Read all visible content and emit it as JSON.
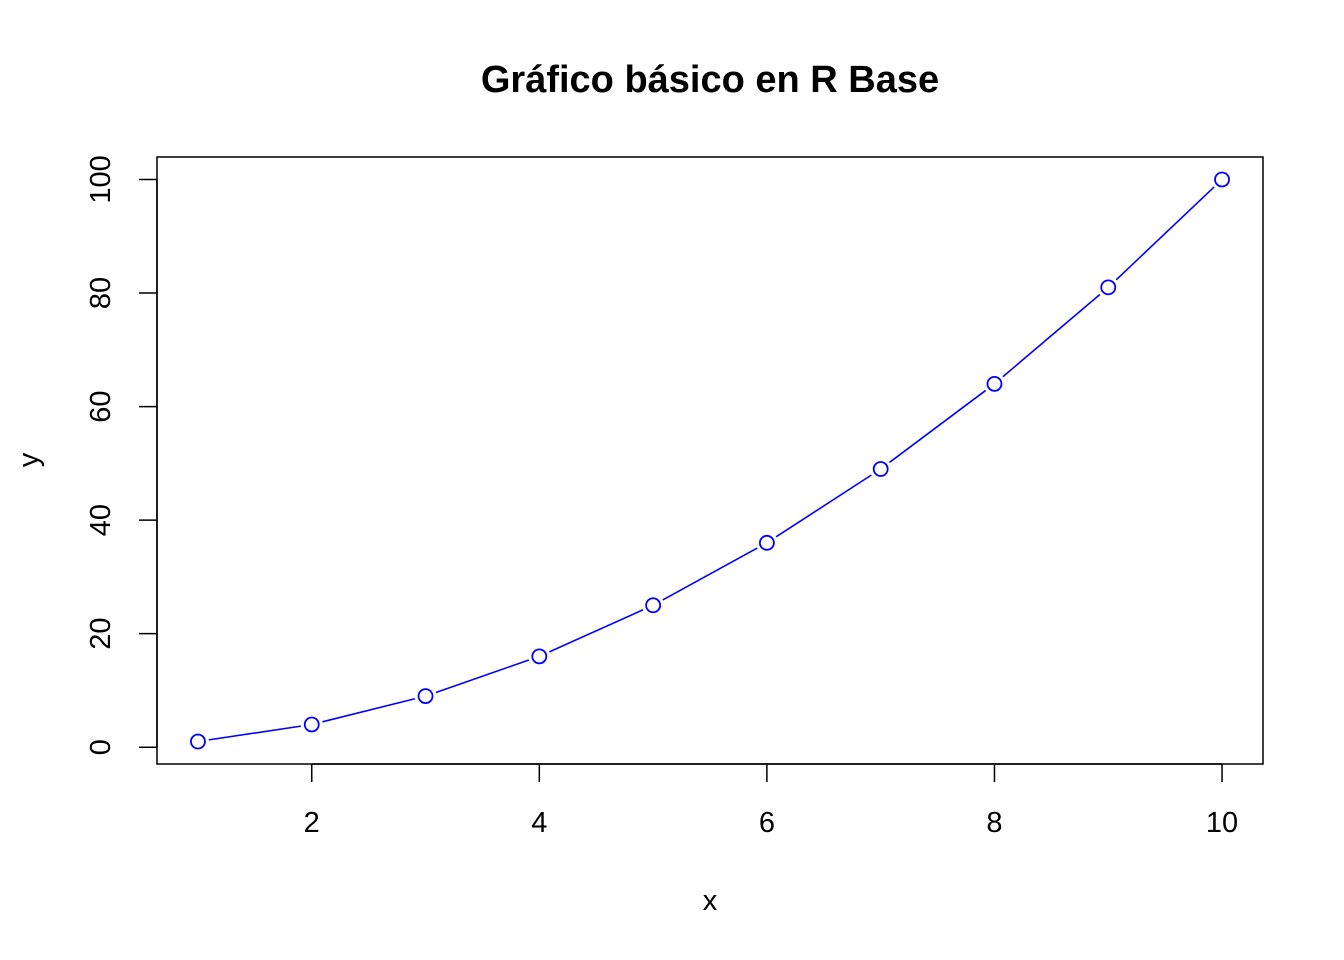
{
  "chart_data": {
    "type": "line",
    "title": "Gráfico básico en R Base",
    "xlabel": "x",
    "ylabel": "y",
    "x": [
      1,
      2,
      3,
      4,
      5,
      6,
      7,
      8,
      9,
      10
    ],
    "series": [
      {
        "values": [
          1,
          4,
          9,
          16,
          25,
          36,
          49,
          64,
          81,
          100
        ],
        "color": "#0000ff",
        "marker": "open-circle",
        "line": "solid"
      }
    ],
    "xlim": [
      0.64,
      10.36
    ],
    "ylim": [
      -2.96,
      103.96
    ],
    "xticks": [
      2,
      4,
      6,
      8,
      10
    ],
    "xtick_labels": [
      "2",
      "4",
      "6",
      "8",
      "10"
    ],
    "yticks": [
      0,
      20,
      40,
      60,
      80,
      100
    ],
    "ytick_labels": [
      "0",
      "20",
      "40",
      "60",
      "80",
      "100"
    ],
    "grid": false,
    "legend": "none",
    "box": true
  }
}
